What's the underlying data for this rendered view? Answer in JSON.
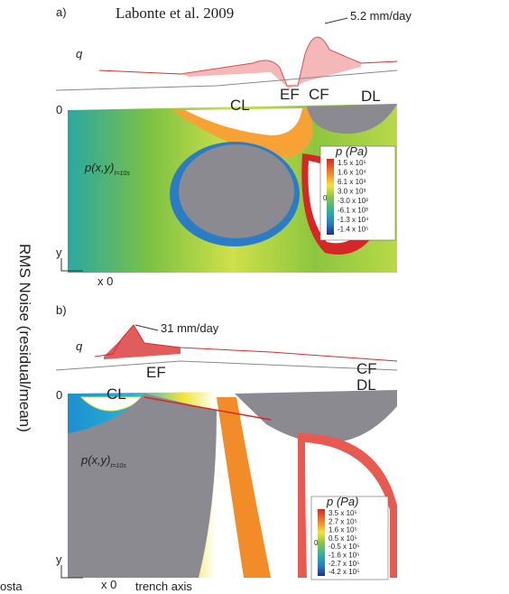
{
  "side_label": "RMS Noise (residual/mean)",
  "corner_fragment": "osta",
  "panel_a": {
    "tag": "a)",
    "citation": "Labonte et al. 2009",
    "peak_label": "5.2 mm/day",
    "q": "q",
    "regions": {
      "ef": "EF",
      "cf": "CF",
      "cl": "CL",
      "dl": "DL"
    },
    "zero": "0",
    "field": "p(x,y)",
    "field_sub": "t=10s",
    "y_axis": "y",
    "x_axis": "x 0",
    "legend": {
      "title": "p (Pa)",
      "mid": "0",
      "labels": [
        "1.5 x 10⁵",
        "1.6 x 10⁴",
        "6.1 x 10³",
        "3.0 x 10³",
        "-3.0 x 10³",
        "-6.1 x 10³",
        "-1.3 x 10⁴",
        "-1.4 x 10⁵"
      ]
    }
  },
  "panel_b": {
    "tag": "b)",
    "peak_label": "31 mm/day",
    "q": "q",
    "regions": {
      "ef": "EF",
      "cf": "CF",
      "cl": "CL",
      "dl": "DL"
    },
    "zero": "0",
    "field": "p(x,y)",
    "field_sub": "t=10s",
    "y_axis": "y",
    "x_axis": "x 0",
    "trench": "trench axis",
    "legend": {
      "title": "p (Pa)",
      "mid": "0",
      "labels": [
        "3.5 x 10⁵",
        "2.7 x 10⁵",
        "1.6 x 10⁵",
        "0.5 x 10⁵",
        "-0.5 x 10⁵",
        "-1.6 x 10⁵",
        "-2.7 x 10⁵",
        "-4.2 x 10⁵"
      ]
    }
  }
}
